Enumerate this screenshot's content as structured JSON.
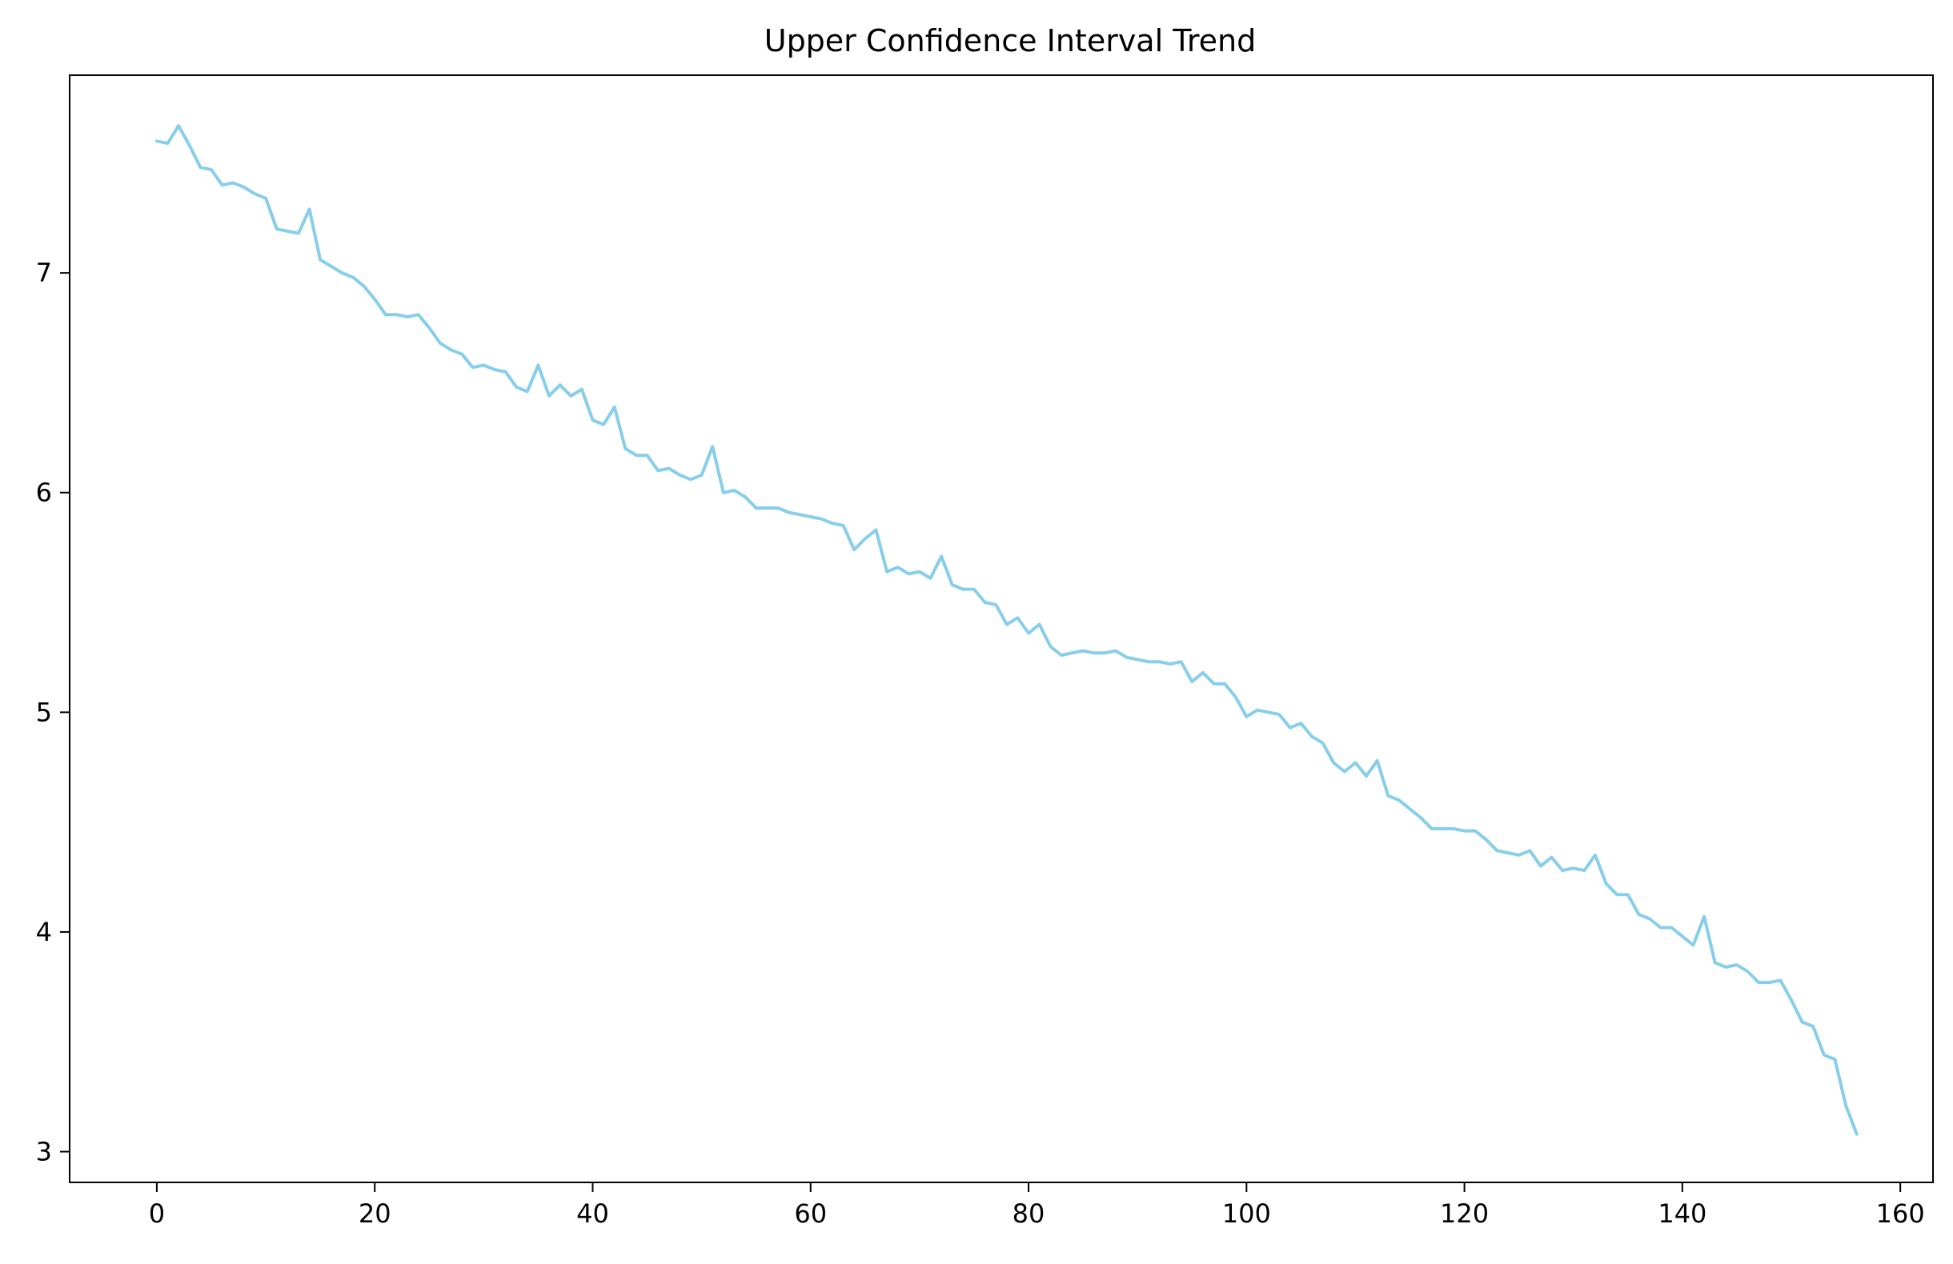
{
  "chart_data": {
    "type": "line",
    "title": "Upper Confidence Interval Trend",
    "xlabel": "",
    "ylabel": "",
    "xlim": [
      -8,
      163
    ],
    "ylim": [
      2.86,
      7.9
    ],
    "x_ticks": [
      0,
      20,
      40,
      60,
      80,
      100,
      120,
      140,
      160
    ],
    "y_ticks": [
      3,
      4,
      5,
      6,
      7
    ],
    "grid": false,
    "legend": "none",
    "line_color": "#87CEEB",
    "series": [
      {
        "x": [
          0,
          1,
          2,
          3,
          4,
          5,
          6,
          7,
          8,
          9,
          10,
          11,
          12,
          13,
          14,
          15,
          16,
          17,
          18,
          19,
          20,
          21,
          22,
          23,
          24,
          25,
          26,
          27,
          28,
          29,
          30,
          31,
          32,
          33,
          34,
          35,
          36,
          37,
          38,
          39,
          40,
          41,
          42,
          43,
          44,
          45,
          46,
          47,
          48,
          49,
          50,
          51,
          52,
          53,
          54,
          55,
          56,
          57,
          58,
          59,
          60,
          61,
          62,
          63,
          64,
          65,
          66,
          67,
          68,
          69,
          70,
          71,
          72,
          73,
          74,
          75,
          76,
          77,
          78,
          79,
          80,
          81,
          82,
          83,
          84,
          85,
          86,
          87,
          88,
          89,
          90,
          91,
          92,
          93,
          94,
          95,
          96,
          97,
          98,
          99,
          100,
          101,
          102,
          103,
          104,
          105,
          106,
          107,
          108,
          109,
          110,
          111,
          112,
          113,
          114,
          115,
          116,
          117,
          118,
          119,
          120,
          121,
          122,
          123,
          124,
          125,
          126,
          127,
          128,
          129,
          130,
          131,
          132,
          133,
          134,
          135,
          136,
          137,
          138,
          139,
          140,
          141,
          142,
          143,
          144,
          145,
          146,
          147,
          148,
          149,
          150,
          151,
          152,
          153,
          154,
          155,
          156
        ],
        "values": [
          7.6,
          7.59,
          7.67,
          7.58,
          7.48,
          7.47,
          7.4,
          7.41,
          7.39,
          7.36,
          7.34,
          7.2,
          7.19,
          7.18,
          7.29,
          7.06,
          7.03,
          7.0,
          6.98,
          6.94,
          6.88,
          6.81,
          6.81,
          6.8,
          6.81,
          6.75,
          6.68,
          6.65,
          6.63,
          6.57,
          6.58,
          6.56,
          6.55,
          6.48,
          6.46,
          6.58,
          6.44,
          6.49,
          6.44,
          6.47,
          6.33,
          6.31,
          6.39,
          6.2,
          6.17,
          6.17,
          6.1,
          6.11,
          6.08,
          6.06,
          6.08,
          6.21,
          6.0,
          6.01,
          5.98,
          5.93,
          5.93,
          5.93,
          5.91,
          5.9,
          5.89,
          5.88,
          5.86,
          5.85,
          5.74,
          5.79,
          5.83,
          5.64,
          5.66,
          5.63,
          5.64,
          5.61,
          5.71,
          5.58,
          5.56,
          5.56,
          5.5,
          5.49,
          5.4,
          5.43,
          5.36,
          5.4,
          5.3,
          5.26,
          5.27,
          5.28,
          5.27,
          5.27,
          5.28,
          5.25,
          5.24,
          5.23,
          5.23,
          5.22,
          5.23,
          5.14,
          5.18,
          5.13,
          5.13,
          5.07,
          4.98,
          5.01,
          5.0,
          4.99,
          4.93,
          4.95,
          4.89,
          4.86,
          4.77,
          4.73,
          4.77,
          4.71,
          4.78,
          4.62,
          4.6,
          4.56,
          4.52,
          4.47,
          4.47,
          4.47,
          4.46,
          4.46,
          4.42,
          4.37,
          4.36,
          4.35,
          4.37,
          4.3,
          4.34,
          4.28,
          4.29,
          4.28,
          4.35,
          4.22,
          4.17,
          4.17,
          4.08,
          4.06,
          4.02,
          4.02,
          3.98,
          3.94,
          4.07,
          3.86,
          3.84,
          3.85,
          3.82,
          3.77,
          3.77,
          3.78,
          3.69,
          3.59,
          3.57,
          3.44,
          3.42,
          3.21,
          3.08
        ]
      }
    ]
  }
}
